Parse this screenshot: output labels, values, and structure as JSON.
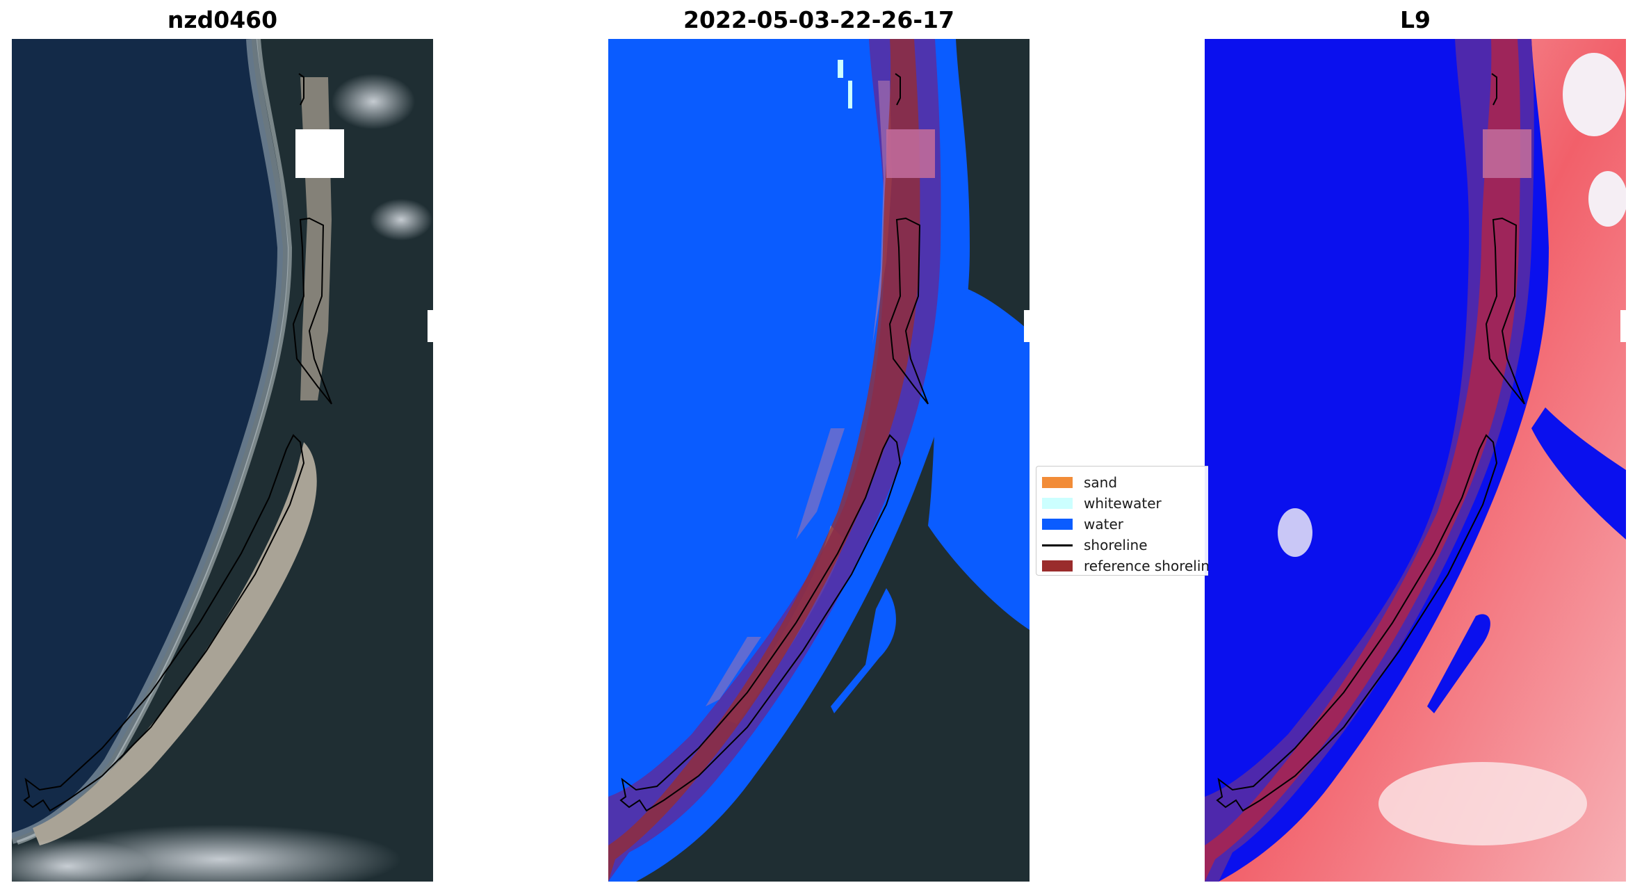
{
  "panels": [
    {
      "title": "nzd0460"
    },
    {
      "title": "2022-05-03-22-26-17"
    },
    {
      "title": "L9"
    }
  ],
  "legend": {
    "items": [
      {
        "label": "sand",
        "color": "#f28c38",
        "kind": "patch"
      },
      {
        "label": "whitewater",
        "color": "#ccffff",
        "kind": "patch"
      },
      {
        "label": "water",
        "color": "#0a5cff",
        "kind": "patch"
      },
      {
        "label": "shoreline",
        "color": "#000000",
        "kind": "line"
      },
      {
        "label": "reference shoreline",
        "color": "#9a2c2c",
        "kind": "patch"
      }
    ]
  },
  "colors": {
    "ocean_rgb": "#13294a",
    "land_rgb": "#1e2d33",
    "sand_rgb": "#a9a396",
    "water_class": "#0a5cff",
    "buffer_overlay": "#5b2da0",
    "reference_shoreline": "#9a2c2c",
    "index_water": "#0a10ee",
    "index_land": "#f2606a"
  }
}
